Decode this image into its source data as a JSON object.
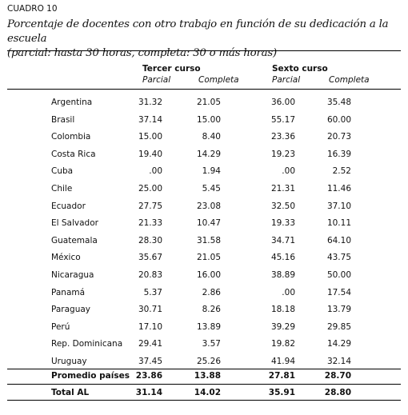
{
  "table_label": "CUADRO 10",
  "title_line1": "Porcentaje de docentes con otro trabajo en función de su dedicación a la escuela",
  "title_line2": "(parcial: hasta 30 horas, completa: 30 o más horas)",
  "headers": {
    "group1": "Tercer curso",
    "group2": "Sexto curso",
    "parcial": "Parcial",
    "completa": "Completa"
  },
  "rows": [
    {
      "country": "Argentina",
      "t_parcial": "31.32",
      "t_completa": "21.05",
      "s_parcial": "36.00",
      "s_completa": "35.48"
    },
    {
      "country": "Brasil",
      "t_parcial": "37.14",
      "t_completa": "15.00",
      "s_parcial": "55.17",
      "s_completa": "60.00"
    },
    {
      "country": "Colombia",
      "t_parcial": "15.00",
      "t_completa": "8.40",
      "s_parcial": "23.36",
      "s_completa": "20.73"
    },
    {
      "country": "Costa Rica",
      "t_parcial": "19.40",
      "t_completa": "14.29",
      "s_parcial": "19.23",
      "s_completa": "16.39"
    },
    {
      "country": "Cuba",
      "t_parcial": ".00",
      "t_completa": "1.94",
      "s_parcial": ".00",
      "s_completa": "2.52"
    },
    {
      "country": "Chile",
      "t_parcial": "25.00",
      "t_completa": "5.45",
      "s_parcial": "21.31",
      "s_completa": "11.46"
    },
    {
      "country": "Ecuador",
      "t_parcial": "27.75",
      "t_completa": "23.08",
      "s_parcial": "32.50",
      "s_completa": "37.10"
    },
    {
      "country": "El Salvador",
      "t_parcial": "21.33",
      "t_completa": "10.47",
      "s_parcial": "19.33",
      "s_completa": "10.11"
    },
    {
      "country": "Guatemala",
      "t_parcial": "28.30",
      "t_completa": "31.58",
      "s_parcial": "34.71",
      "s_completa": "64.10"
    },
    {
      "country": "México",
      "t_parcial": "35.67",
      "t_completa": "21.05",
      "s_parcial": "45.16",
      "s_completa": "43.75"
    },
    {
      "country": "Nicaragua",
      "t_parcial": "20.83",
      "t_completa": "16.00",
      "s_parcial": "38.89",
      "s_completa": "50.00"
    },
    {
      "country": "Panamá",
      "t_parcial": "5.37",
      "t_completa": "2.86",
      "s_parcial": ".00",
      "s_completa": "17.54"
    },
    {
      "country": "Paraguay",
      "t_parcial": "30.71",
      "t_completa": "8.26",
      "s_parcial": "18.18",
      "s_completa": "13.79"
    },
    {
      "country": "Perú",
      "t_parcial": "17.10",
      "t_completa": "13.89",
      "s_parcial": "39.29",
      "s_completa": "29.85"
    },
    {
      "country": "Rep. Dominicana",
      "t_parcial": "29.41",
      "t_completa": "3.57",
      "s_parcial": "19.82",
      "s_completa": "14.29"
    },
    {
      "country": "Uruguay",
      "t_parcial": "37.45",
      "t_completa": "25.26",
      "s_parcial": "41.94",
      "s_completa": "32.14"
    }
  ],
  "summary_rows": [
    {
      "country": "Promedio países",
      "t_parcial": "23.86",
      "t_completa": "13.88",
      "s_parcial": "27.81",
      "s_completa": "28.70"
    },
    {
      "country": "Total AL",
      "t_parcial": "31.14",
      "t_completa": "14.02",
      "s_parcial": "35.91",
      "s_completa": "28.80"
    }
  ]
}
